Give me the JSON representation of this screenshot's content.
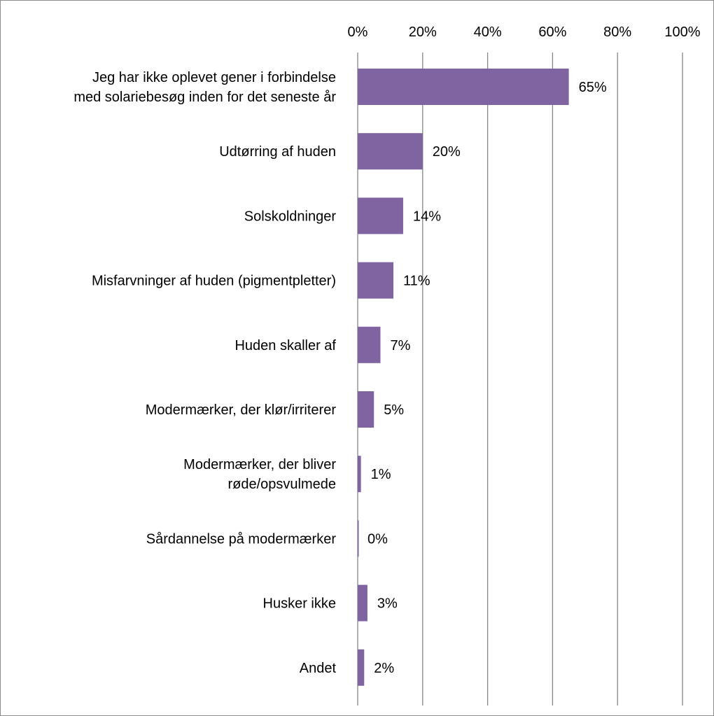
{
  "chart_data": {
    "type": "bar",
    "orientation": "horizontal",
    "title": "",
    "xlabel": "",
    "ylabel": "",
    "xlim": [
      0,
      100
    ],
    "x_ticks": [
      "0%",
      "20%",
      "40%",
      "60%",
      "80%",
      "100%"
    ],
    "x_tick_values": [
      0,
      20,
      40,
      60,
      80,
      100
    ],
    "grid": true,
    "legend": "none",
    "bar_color": "#8064a2",
    "categories": [
      [
        "Jeg har ikke oplevet gener i forbindelse",
        "med solariebesøg inden for det seneste år"
      ],
      [
        "Udtørring af huden"
      ],
      [
        "Solskoldninger"
      ],
      [
        "Misfarvninger af huden (pigmentpletter)"
      ],
      [
        "Huden skaller af"
      ],
      [
        "Modermærker, der klør/irriterer"
      ],
      [
        "Modermærker, der bliver",
        "røde/opsvulmede"
      ],
      [
        "Sårdannelse på modermærker"
      ],
      [
        "Husker ikke"
      ],
      [
        "Andet"
      ]
    ],
    "values": [
      65,
      20,
      14,
      11,
      7,
      5,
      1,
      0,
      3,
      2
    ],
    "data_labels": [
      "65%",
      "20%",
      "14%",
      "11%",
      "7%",
      "5%",
      "1%",
      "0%",
      "3%",
      "2%"
    ]
  }
}
